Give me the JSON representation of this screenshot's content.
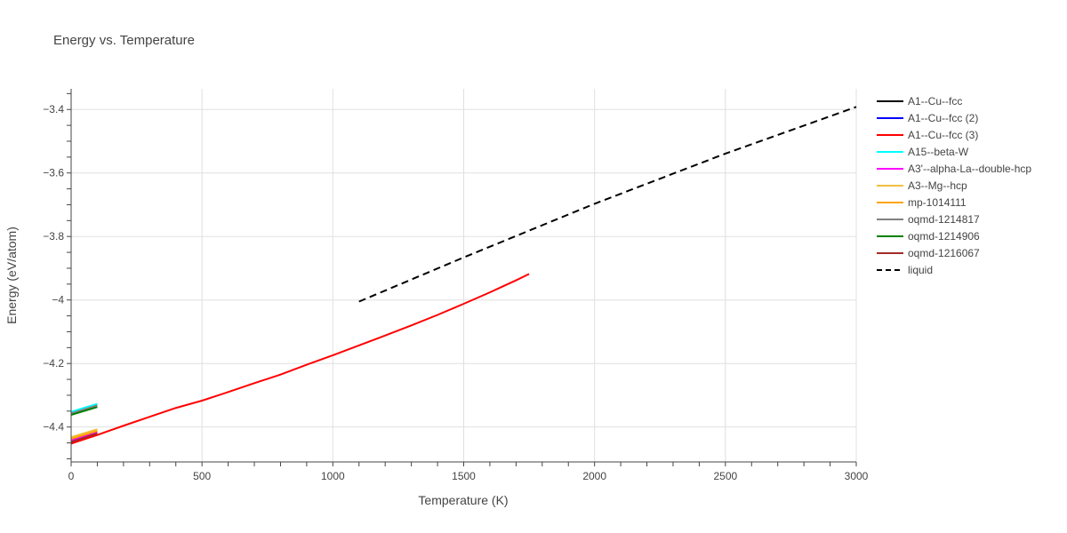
{
  "chart_data": {
    "type": "line",
    "title": "Energy vs. Temperature",
    "xlabel": "Temperature (K)",
    "ylabel": "Energy (eV/atom)",
    "xlim": [
      0,
      3000
    ],
    "ylim": [
      -4.51,
      -3.335
    ],
    "x_ticks": [
      {
        "value": 0,
        "label": "0"
      },
      {
        "value": 500,
        "label": "500"
      },
      {
        "value": 1000,
        "label": "1000"
      },
      {
        "value": 1500,
        "label": "1500"
      },
      {
        "value": 2000,
        "label": "2000"
      },
      {
        "value": 2500,
        "label": "2500"
      },
      {
        "value": 3000,
        "label": "3000"
      }
    ],
    "y_ticks": [
      {
        "value": -4.4,
        "label": "−4.4"
      },
      {
        "value": -4.2,
        "label": "−4.2"
      },
      {
        "value": -4.0,
        "label": "−4"
      },
      {
        "value": -3.8,
        "label": "−3.8"
      },
      {
        "value": -3.6,
        "label": "−3.6"
      },
      {
        "value": -3.4,
        "label": "−3.4"
      }
    ],
    "grid": true,
    "legend_position": "right",
    "series": [
      {
        "name": "A1--Cu--fcc",
        "color": "#000000",
        "dash": "solid",
        "x": [
          0,
          100
        ],
        "y": [
          -4.452,
          -4.422
        ]
      },
      {
        "name": "A1--Cu--fcc (2)",
        "color": "#0000ff",
        "dash": "solid",
        "x": [
          0,
          100
        ],
        "y": [
          -4.452,
          -4.422
        ]
      },
      {
        "name": "A1--Cu--fcc (3)",
        "color": "#ff0000",
        "dash": "solid",
        "x": [
          0,
          100,
          200,
          300,
          400,
          500,
          600,
          700,
          800,
          900,
          1000,
          1100,
          1200,
          1300,
          1400,
          1500,
          1600,
          1650,
          1700,
          1750
        ],
        "y": [
          -4.452,
          -4.425,
          -4.396,
          -4.368,
          -4.34,
          -4.317,
          -4.29,
          -4.262,
          -4.235,
          -4.204,
          -4.174,
          -4.143,
          -4.112,
          -4.08,
          -4.047,
          -4.012,
          -3.976,
          -3.957,
          -3.938,
          -3.918
        ]
      },
      {
        "name": "A15--beta-W",
        "color": "#00ffff",
        "dash": "solid",
        "x": [
          0,
          100
        ],
        "y": [
          -4.352,
          -4.327
        ]
      },
      {
        "name": "A3'--alpha-La--double-hcp",
        "color": "#ff00ff",
        "dash": "solid",
        "x": [
          0,
          100
        ],
        "y": [
          -4.442,
          -4.415
        ]
      },
      {
        "name": "A3--Mg--hcp",
        "color": "#f0c040",
        "dash": "solid",
        "x": [
          0,
          100
        ],
        "y": [
          -4.432,
          -4.407
        ]
      },
      {
        "name": "mp-1014111",
        "color": "#ffa500",
        "dash": "solid",
        "x": [
          0,
          100
        ],
        "y": [
          -4.437,
          -4.412
        ]
      },
      {
        "name": "oqmd-1214817",
        "color": "#808080",
        "dash": "solid",
        "x": [
          0,
          100
        ],
        "y": [
          -4.357,
          -4.332
        ]
      },
      {
        "name": "oqmd-1214906",
        "color": "#008000",
        "dash": "solid",
        "x": [
          0,
          100
        ],
        "y": [
          -4.362,
          -4.337
        ]
      },
      {
        "name": "oqmd-1216067",
        "color": "#a52a2a",
        "dash": "solid",
        "x": [
          0,
          100
        ],
        "y": [
          -4.447,
          -4.42
        ]
      },
      {
        "name": "liquid",
        "color": "#000000",
        "dash": "dash",
        "x": [
          1100,
          1500,
          2000,
          2500,
          3000
        ],
        "y": [
          -4.005,
          -3.866,
          -3.697,
          -3.539,
          -3.392
        ]
      }
    ]
  }
}
